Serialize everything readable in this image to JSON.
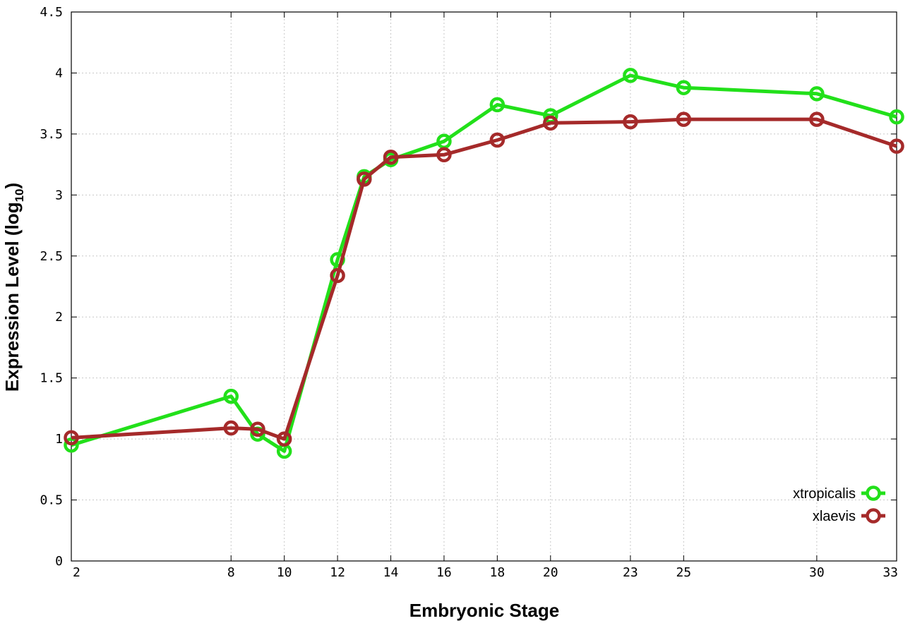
{
  "chart_data": {
    "type": "line",
    "xlabel": "Embryonic Stage",
    "ylabel_main": "Expression Level (log",
    "ylabel_sub": "10",
    "ylabel_close": ")",
    "ylim": [
      0,
      4.5
    ],
    "xlim": [
      2,
      33
    ],
    "x_ticks": [
      2,
      8,
      10,
      12,
      14,
      16,
      18,
      20,
      23,
      25,
      30,
      33
    ],
    "y_ticks": [
      0,
      0.5,
      1,
      1.5,
      2,
      2.5,
      3,
      3.5,
      4,
      4.5
    ],
    "y_tick_labels": [
      "0",
      "0.5",
      "1",
      "1.5",
      "2",
      "2.5",
      "3",
      "3.5",
      "4",
      "4.5"
    ],
    "grid": true,
    "legend_position": "bottom-right",
    "series": [
      {
        "name": "xtropicalis",
        "color": "#22e01a",
        "points": [
          {
            "x": 2,
            "y": 0.95
          },
          {
            "x": 8,
            "y": 1.35
          },
          {
            "x": 9,
            "y": 1.04
          },
          {
            "x": 10,
            "y": 0.9
          },
          {
            "x": 12,
            "y": 2.47
          },
          {
            "x": 13,
            "y": 3.15
          },
          {
            "x": 14,
            "y": 3.29
          },
          {
            "x": 16,
            "y": 3.44
          },
          {
            "x": 18,
            "y": 3.74
          },
          {
            "x": 20,
            "y": 3.65
          },
          {
            "x": 23,
            "y": 3.98
          },
          {
            "x": 25,
            "y": 3.88
          },
          {
            "x": 30,
            "y": 3.83
          },
          {
            "x": 33,
            "y": 3.64
          }
        ]
      },
      {
        "name": "xlaevis",
        "color": "#a52a2a",
        "points": [
          {
            "x": 2,
            "y": 1.01
          },
          {
            "x": 8,
            "y": 1.09
          },
          {
            "x": 9,
            "y": 1.08
          },
          {
            "x": 10,
            "y": 1.0
          },
          {
            "x": 12,
            "y": 2.34
          },
          {
            "x": 13,
            "y": 3.13
          },
          {
            "x": 14,
            "y": 3.31
          },
          {
            "x": 16,
            "y": 3.33
          },
          {
            "x": 18,
            "y": 3.45
          },
          {
            "x": 20,
            "y": 3.59
          },
          {
            "x": 23,
            "y": 3.6
          },
          {
            "x": 25,
            "y": 3.62
          },
          {
            "x": 30,
            "y": 3.62
          },
          {
            "x": 33,
            "y": 3.4
          }
        ]
      }
    ]
  }
}
